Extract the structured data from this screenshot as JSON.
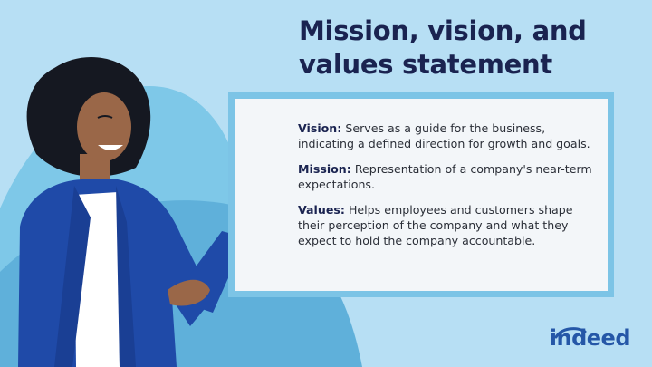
{
  "slide": {
    "title": "Mission, vision, and values statement",
    "title_line_1": "Mission, vision, and",
    "title_line_2": "values statement"
  },
  "definitions": [
    {
      "term": "Vision:",
      "text": "Serves as a guide for the business, indicating a defined direction for growth and goals."
    },
    {
      "term": "Mission:",
      "text": "Representation of a company's near-term expectations."
    },
    {
      "term": "Values:",
      "text": "Helps employees and customers shape their perception of the company and what they expect to hold the company accountable."
    }
  ],
  "brand": {
    "logo_text": "indeed",
    "logo_color": "#2557a7"
  },
  "colors": {
    "background": "#b7dff4",
    "board_frame": "#7cc4e6",
    "board_surface": "#f3f6f9",
    "title": "#1a2350",
    "jacket": "#1f4aa8"
  },
  "illustration": {
    "subject": "presenter-woman-pointing-icon"
  }
}
